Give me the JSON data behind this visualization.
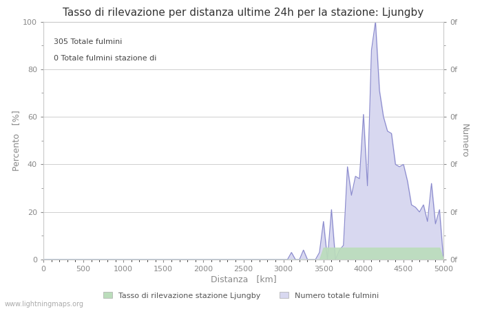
{
  "title": "Tasso di rilevazione per distanza ultime 24h per la stazione: Ljungby",
  "xlabel": "Distanza   [km]",
  "ylabel_left": "Percento   [%]",
  "ylabel_right": "Numero",
  "annotation_line1": "305 Totale fulmini",
  "annotation_line2": "0 Totale fulmini stazione di",
  "watermark": "www.lightningmaps.org",
  "legend_label_green": "Tasso di rilevazione stazione Ljungby",
  "legend_label_blue": "Numero totale fulmini",
  "xlim": [
    0,
    5000
  ],
  "ylim_left": [
    0,
    100
  ],
  "xticks": [
    0,
    500,
    1000,
    1500,
    2000,
    2500,
    3000,
    3500,
    4000,
    4500,
    5000
  ],
  "yticks_left": [
    0,
    20,
    40,
    60,
    80,
    100
  ],
  "bg_color": "#ffffff",
  "grid_color": "#c8c8c8",
  "blue_line_color": "#8888cc",
  "blue_fill_color": "#d8d8f0",
  "green_fill_color": "#bbddbb",
  "title_fontsize": 11,
  "axis_fontsize": 9,
  "tick_fontsize": 8,
  "x_data": [
    0,
    50,
    100,
    150,
    200,
    250,
    300,
    350,
    400,
    450,
    500,
    550,
    600,
    650,
    700,
    750,
    800,
    850,
    900,
    950,
    1000,
    1050,
    1100,
    1150,
    1200,
    1250,
    1300,
    1350,
    1400,
    1450,
    1500,
    1550,
    1600,
    1650,
    1700,
    1750,
    1800,
    1850,
    1900,
    1950,
    2000,
    2050,
    2100,
    2150,
    2200,
    2250,
    2300,
    2350,
    2400,
    2450,
    2500,
    2550,
    2600,
    2650,
    2700,
    2750,
    2800,
    2850,
    2900,
    2950,
    3000,
    3050,
    3100,
    3150,
    3200,
    3250,
    3300,
    3350,
    3400,
    3450,
    3500,
    3550,
    3600,
    3650,
    3700,
    3750,
    3800,
    3850,
    3900,
    3950,
    4000,
    4050,
    4100,
    4150,
    4200,
    4250,
    4300,
    4350,
    4400,
    4450,
    4500,
    4550,
    4600,
    4650,
    4700,
    4750,
    4800,
    4850,
    4900,
    4950,
    5000
  ],
  "y_blue": [
    0,
    0,
    0,
    0,
    0,
    0,
    0,
    0,
    0,
    0,
    0,
    0,
    0,
    0,
    0,
    0,
    0,
    0,
    0,
    0,
    0,
    0,
    0,
    0,
    0,
    0,
    0,
    0,
    0,
    0,
    0,
    0,
    0,
    0,
    0,
    0,
    0,
    0,
    0,
    0,
    0,
    0,
    0,
    0,
    0,
    0,
    0,
    0,
    0,
    0,
    0,
    0,
    0,
    0,
    0,
    0,
    0,
    0,
    0,
    0,
    0,
    0,
    3,
    0,
    0,
    4,
    0,
    0,
    0,
    3,
    16,
    0,
    21,
    0,
    4,
    6,
    39,
    27,
    35,
    34,
    61,
    31,
    88,
    100,
    71,
    60,
    54,
    53,
    40,
    39,
    40,
    33,
    23,
    22,
    20,
    23,
    16,
    32,
    15,
    21,
    0
  ],
  "y_green": [
    0,
    0,
    0,
    0,
    0,
    0,
    0,
    0,
    0,
    0,
    0,
    0,
    0,
    0,
    0,
    0,
    0,
    0,
    0,
    0,
    0,
    0,
    0,
    0,
    0,
    0,
    0,
    0,
    0,
    0,
    0,
    0,
    0,
    0,
    0,
    0,
    0,
    0,
    0,
    0,
    0,
    0,
    0,
    0,
    0,
    0,
    0,
    0,
    0,
    0,
    0,
    0,
    0,
    0,
    0,
    0,
    0,
    0,
    0,
    0,
    0,
    0,
    0,
    0,
    0,
    0,
    0,
    0,
    0,
    0,
    5,
    5,
    5,
    5,
    5,
    5,
    5,
    5,
    5,
    5,
    5,
    5,
    5,
    5,
    5,
    5,
    5,
    5,
    5,
    5,
    5,
    5,
    5,
    5,
    5,
    5,
    5,
    5,
    5,
    5,
    0
  ]
}
